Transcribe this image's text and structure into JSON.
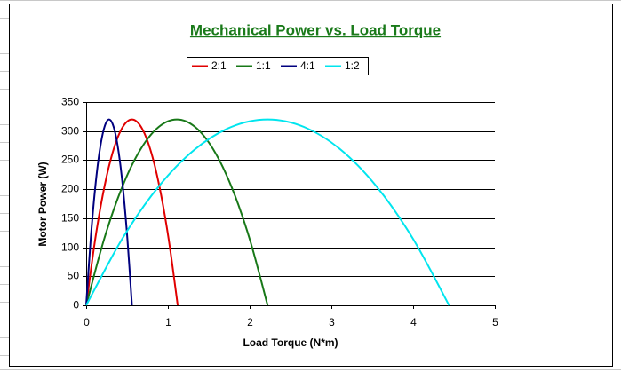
{
  "chart_data": {
    "type": "line",
    "title": "Mechanical Power vs. Load Torque",
    "x_label": "Load Torque (N*m)",
    "y_label": "Motor Power (W)",
    "xlim": [
      0,
      5
    ],
    "xticks": [
      0,
      1,
      2,
      3,
      4,
      5
    ],
    "ylim": [
      0,
      350
    ],
    "yticks": [
      0,
      50,
      100,
      150,
      200,
      250,
      300,
      350
    ],
    "grid": true,
    "legend": "top",
    "series": [
      {
        "name": "2:1",
        "color": "#e00000",
        "x": [
          0,
          0.112,
          0.224,
          0.336,
          0.448,
          0.56,
          0.672,
          0.784,
          0.896,
          1.008,
          1.12
        ],
        "values": [
          0,
          115.2,
          204.8,
          268.8,
          307.2,
          320,
          307.2,
          268.8,
          204.8,
          115.2,
          0
        ]
      },
      {
        "name": "1:1",
        "color": "#187818",
        "x": [
          0,
          0.222,
          0.444,
          0.666,
          0.888,
          1.11,
          1.332,
          1.554,
          1.776,
          1.998,
          2.22
        ],
        "values": [
          0,
          115.2,
          204.8,
          268.8,
          307.2,
          320,
          307.2,
          268.8,
          204.8,
          115.2,
          0
        ]
      },
      {
        "name": "4:1",
        "color": "#00007f",
        "x": [
          0,
          0.056,
          0.112,
          0.168,
          0.224,
          0.28,
          0.336,
          0.392,
          0.448,
          0.504,
          0.56
        ],
        "values": [
          0,
          115.2,
          204.8,
          268.8,
          307.2,
          320,
          307.2,
          268.8,
          204.8,
          115.2,
          0
        ]
      },
      {
        "name": "1:2",
        "color": "#00e5ee",
        "x": [
          0,
          0.444,
          0.888,
          1.332,
          1.776,
          2.22,
          2.664,
          3.108,
          3.552,
          3.996,
          4.44
        ],
        "values": [
          0,
          115.2,
          204.8,
          268.8,
          307.2,
          320,
          307.2,
          268.8,
          204.8,
          115.2,
          0
        ]
      }
    ]
  }
}
